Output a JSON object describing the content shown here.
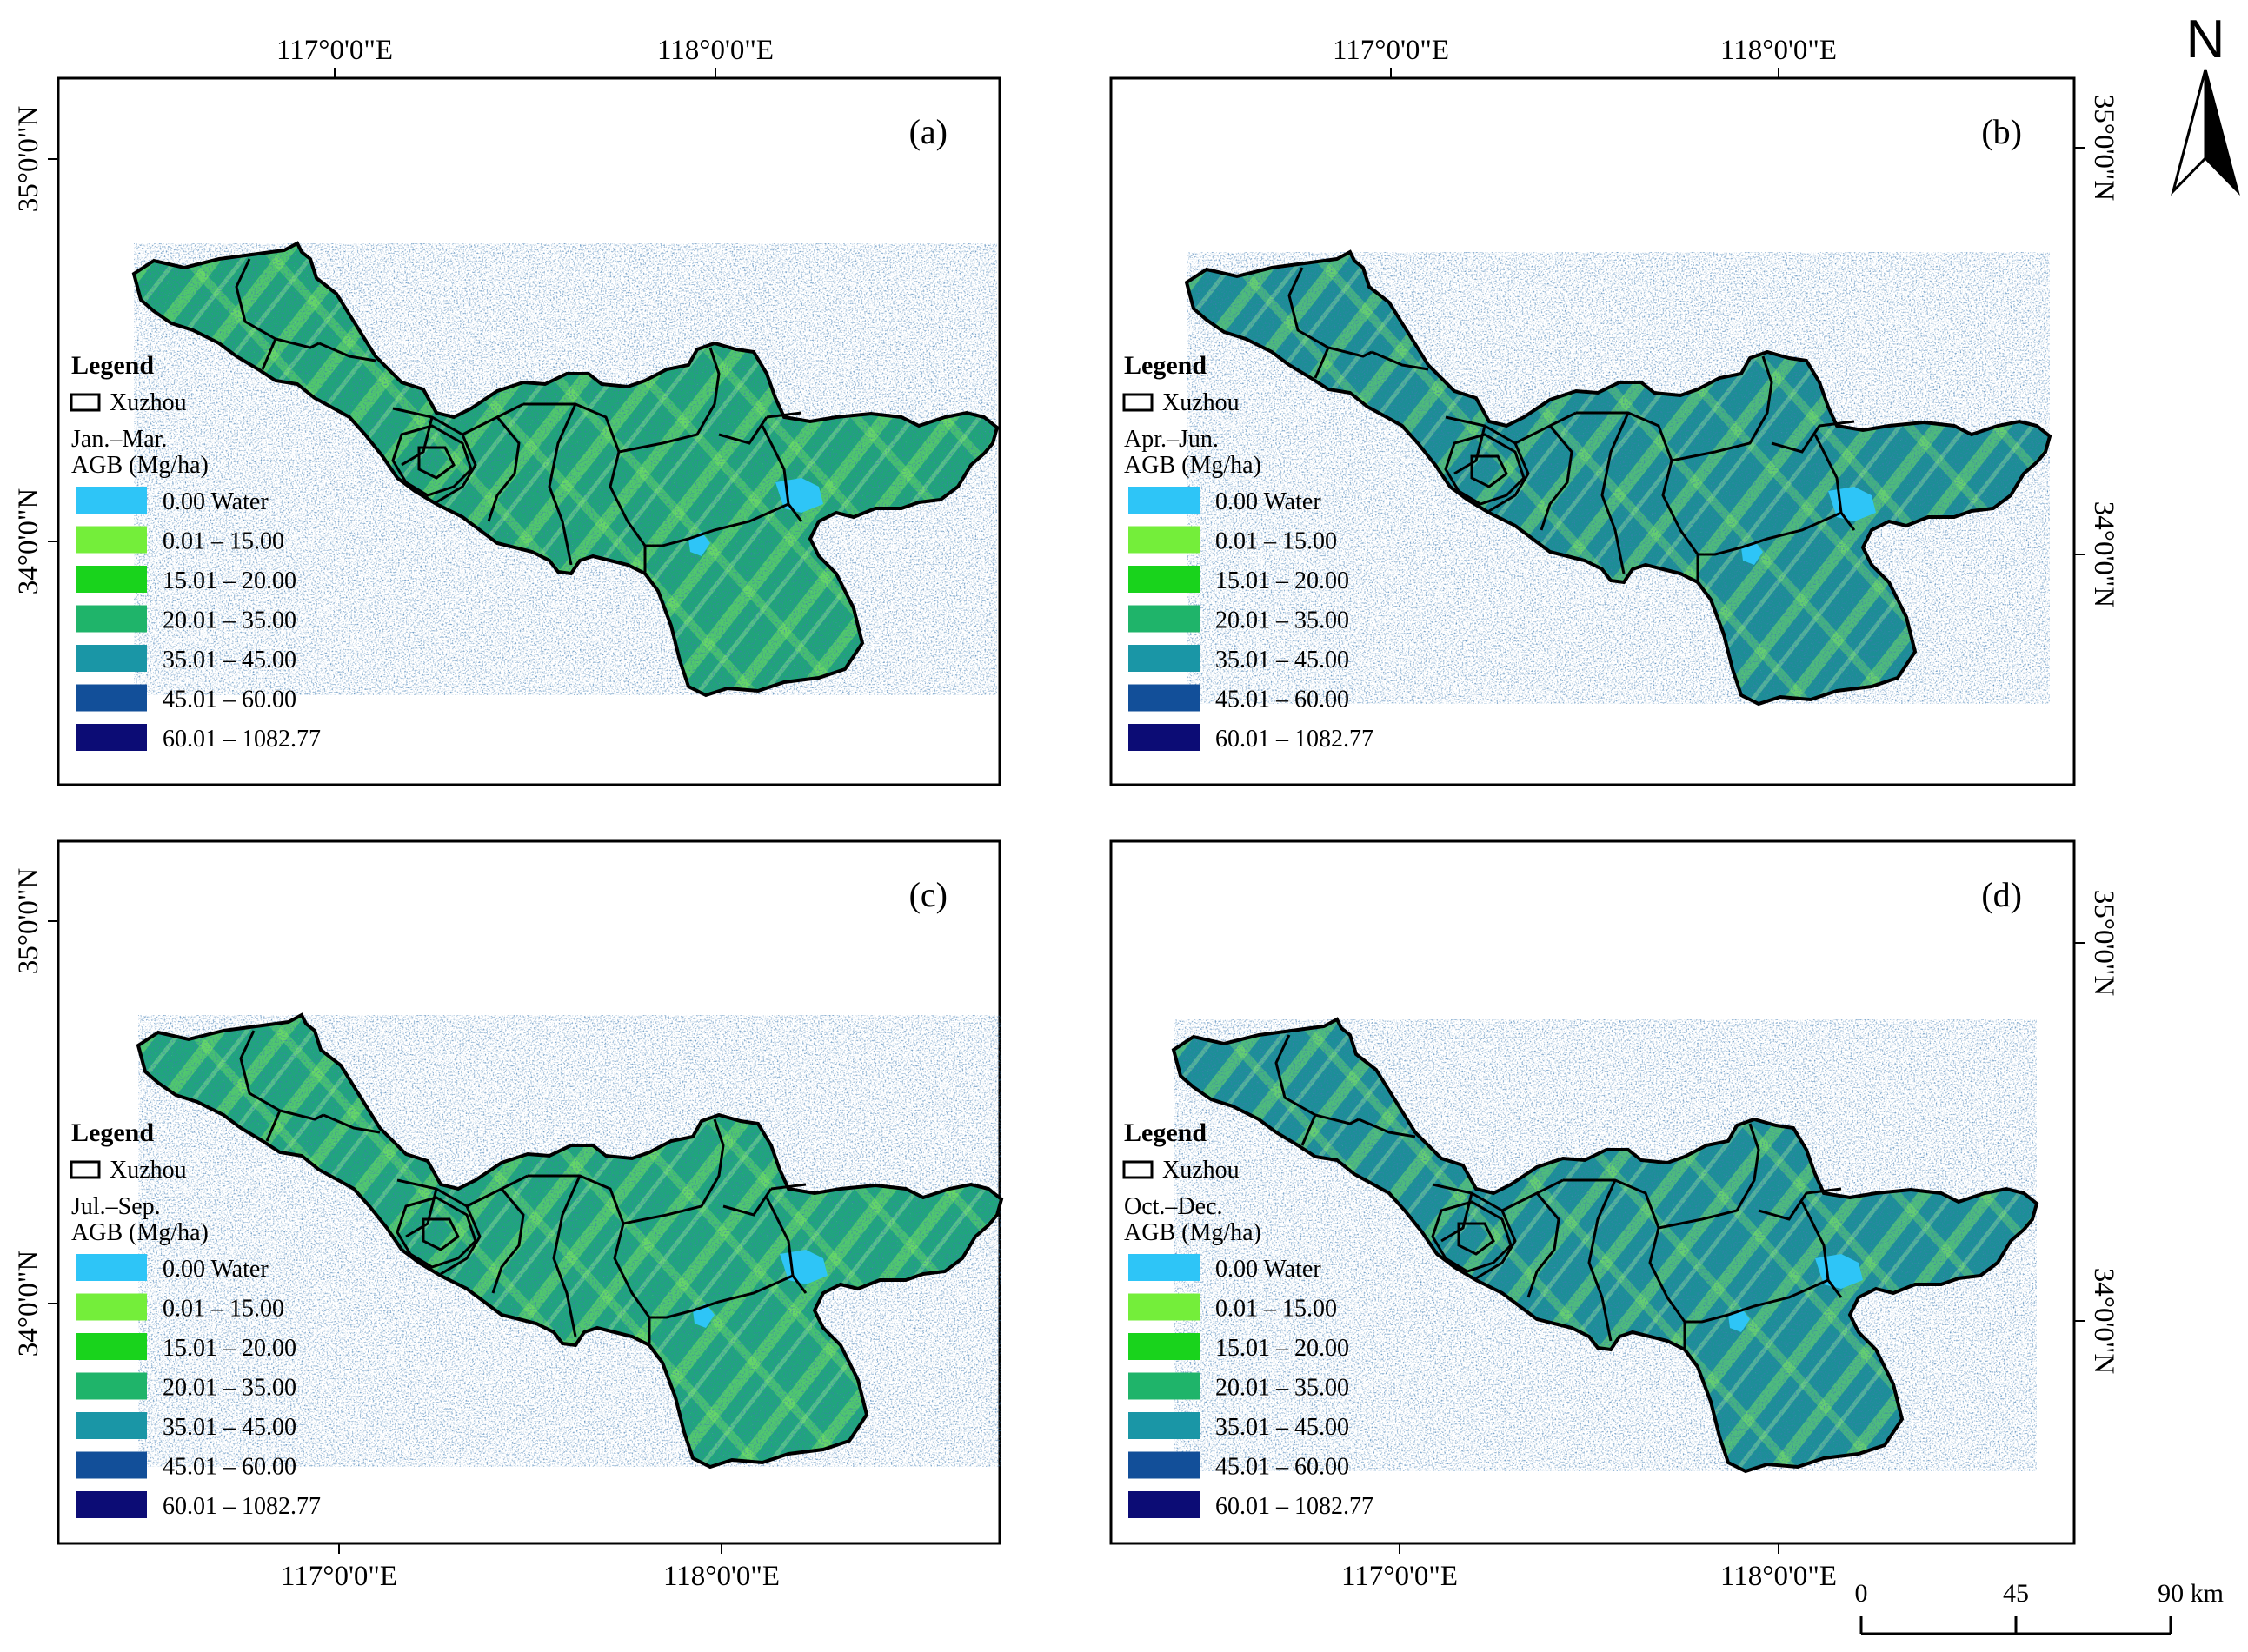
{
  "figure": {
    "north_arrow": {
      "letter": "N",
      "icon": "north-arrow-icon"
    },
    "scale_bar": {
      "labels": [
        "0",
        "45",
        "90 km"
      ]
    },
    "lon_ticks": [
      "117°0'0\"E",
      "118°0'0\"E"
    ],
    "lat_ticks": [
      "35°0'0\"N",
      "34°0'0\"N"
    ],
    "boundary_label": "Xuzhou",
    "legend_heading": "Legend",
    "classes": [
      {
        "label": "0.00 Water",
        "color": "#2ec5f7"
      },
      {
        "label": "0.01 – 15.00",
        "color": "#74ee3a"
      },
      {
        "label": "15.01 – 20.00",
        "color": "#19d31c"
      },
      {
        "label": "20.01 – 35.00",
        "color": "#1fb46a"
      },
      {
        "label": "35.01 – 45.00",
        "color": "#1a96a6"
      },
      {
        "label": "45.01 – 60.00",
        "color": "#124f99"
      },
      {
        "label": "60.01 – 1082.77",
        "color": "#0c0c75"
      }
    ]
  },
  "panels": [
    {
      "letter": "(a)",
      "period": "Jan.–Mar.",
      "unit": "AGB (Mg/ha)"
    },
    {
      "letter": "(b)",
      "period": "Apr.–Jun.",
      "unit": "AGB (Mg/ha)"
    },
    {
      "letter": "(c)",
      "period": "Jul.–Sep.",
      "unit": "AGB (Mg/ha)"
    },
    {
      "letter": "(d)",
      "period": "Oct.–Dec.",
      "unit": "AGB (Mg/ha)"
    }
  ]
}
